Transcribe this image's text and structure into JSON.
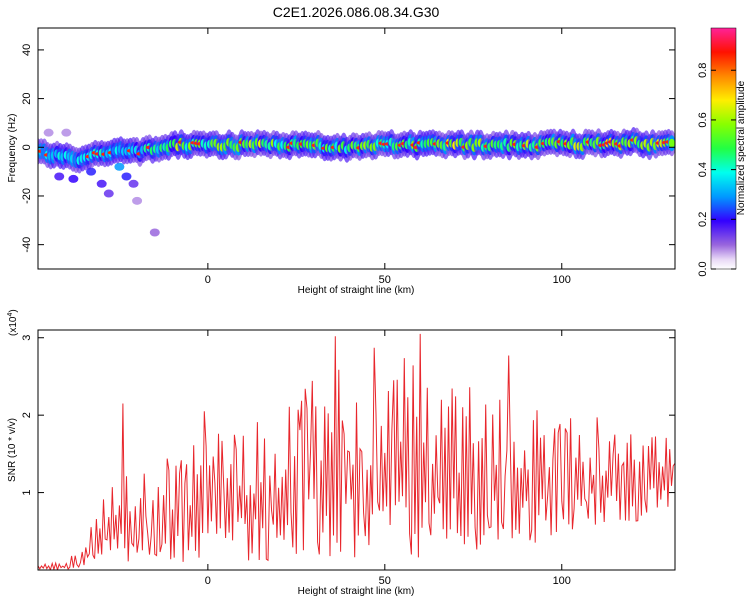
{
  "title": "C2E1.2026.086.08.34.G30",
  "chart_data": [
    {
      "type": "heatmap",
      "xlabel": "Height of straight line (km)",
      "ylabel": "Frequency (Hz)",
      "xlim": [
        -48,
        132
      ],
      "ylim": [
        -50,
        49
      ],
      "xticks": [
        0,
        50,
        100
      ],
      "yticks": [
        -40,
        -20,
        0,
        20,
        40
      ],
      "colorbar": {
        "label": "Normalized spectral amplitude",
        "range": [
          0,
          0.97
        ],
        "ticks": [
          0.0,
          0.2,
          0.4,
          0.6,
          0.8
        ]
      },
      "band": [
        {
          "x": -47,
          "f": -2,
          "a": 0.45
        },
        {
          "x": -44,
          "f": -3,
          "a": 0.5
        },
        {
          "x": -40,
          "f": -4,
          "a": 0.55
        },
        {
          "x": -36,
          "f": -5,
          "a": 0.5
        },
        {
          "x": -32,
          "f": -3,
          "a": 0.55
        },
        {
          "x": -28,
          "f": -2,
          "a": 0.5
        },
        {
          "x": -24,
          "f": -1,
          "a": 0.55
        },
        {
          "x": -20,
          "f": -2,
          "a": 0.5
        },
        {
          "x": -16,
          "f": -1,
          "a": 0.6
        },
        {
          "x": -12,
          "f": 0,
          "a": 0.65
        },
        {
          "x": -8,
          "f": 1,
          "a": 0.8
        },
        {
          "x": -4,
          "f": 1,
          "a": 0.7
        },
        {
          "x": 0,
          "f": 1,
          "a": 0.75
        },
        {
          "x": 5,
          "f": 1,
          "a": 0.8
        },
        {
          "x": 10,
          "f": 1,
          "a": 0.7
        },
        {
          "x": 15,
          "f": 1,
          "a": 0.85
        },
        {
          "x": 20,
          "f": 1,
          "a": 0.7
        },
        {
          "x": 25,
          "f": 1,
          "a": 0.75
        },
        {
          "x": 30,
          "f": 1,
          "a": 0.7
        },
        {
          "x": 35,
          "f": 0,
          "a": 0.65
        },
        {
          "x": 40,
          "f": 0,
          "a": 0.7
        },
        {
          "x": 45,
          "f": 1,
          "a": 0.75
        },
        {
          "x": 50,
          "f": 1,
          "a": 0.7
        },
        {
          "x": 55,
          "f": 1,
          "a": 0.75
        },
        {
          "x": 60,
          "f": 1,
          "a": 0.7
        },
        {
          "x": 65,
          "f": 1,
          "a": 0.8
        },
        {
          "x": 70,
          "f": 1,
          "a": 0.85
        },
        {
          "x": 75,
          "f": 1,
          "a": 0.75
        },
        {
          "x": 80,
          "f": 1,
          "a": 0.8
        },
        {
          "x": 85,
          "f": 1,
          "a": 0.75
        },
        {
          "x": 90,
          "f": 1,
          "a": 0.8
        },
        {
          "x": 95,
          "f": 1,
          "a": 0.85
        },
        {
          "x": 100,
          "f": 2,
          "a": 0.8
        },
        {
          "x": 105,
          "f": 1,
          "a": 0.85
        },
        {
          "x": 110,
          "f": 2,
          "a": 0.8
        },
        {
          "x": 115,
          "f": 1,
          "a": 0.85
        },
        {
          "x": 120,
          "f": 2,
          "a": 0.8
        },
        {
          "x": 125,
          "f": 1,
          "a": 0.85
        },
        {
          "x": 130,
          "f": 2,
          "a": 0.8
        }
      ],
      "blobs": [
        {
          "x": -42,
          "f": -12,
          "a": 0.18
        },
        {
          "x": -38,
          "f": -13,
          "a": 0.2
        },
        {
          "x": -33,
          "f": -10,
          "a": 0.22
        },
        {
          "x": -30,
          "f": -15,
          "a": 0.18
        },
        {
          "x": -28,
          "f": -19,
          "a": 0.15
        },
        {
          "x": -25,
          "f": -8,
          "a": 0.3
        },
        {
          "x": -23,
          "f": -12,
          "a": 0.22
        },
        {
          "x": -21,
          "f": -15,
          "a": 0.15
        },
        {
          "x": -15,
          "f": -35,
          "a": 0.1
        },
        {
          "x": -20,
          "f": -22,
          "a": 0.08
        },
        {
          "x": -45,
          "f": 6,
          "a": 0.08
        },
        {
          "x": -40,
          "f": 6,
          "a": 0.08
        }
      ]
    },
    {
      "type": "line",
      "xlabel": "Height of straight line (km)",
      "ylabel": "SNR (10 * v/v)",
      "yscale_label": "(x10",
      "yscale_exp": "4",
      "scale_suffix": ")",
      "xlim": [
        -48,
        132
      ],
      "ylim": [
        0,
        3.1
      ],
      "xticks": [
        0,
        50,
        100
      ],
      "yticks": [
        1,
        2,
        3
      ],
      "color": "#e8262c",
      "envelope": [
        {
          "x": -48,
          "lo": 0.0,
          "hi": 0.08
        },
        {
          "x": -40,
          "lo": 0.0,
          "hi": 0.1
        },
        {
          "x": -35,
          "lo": 0.05,
          "hi": 0.5
        },
        {
          "x": -30,
          "lo": 0.1,
          "hi": 0.9
        },
        {
          "x": -25,
          "lo": 0.1,
          "hi": 1.3
        },
        {
          "x": -20,
          "lo": 0.05,
          "hi": 1.3
        },
        {
          "x": -10,
          "lo": 0.1,
          "hi": 1.5
        },
        {
          "x": 0,
          "lo": 0.1,
          "hi": 1.8
        },
        {
          "x": 10,
          "lo": 0.1,
          "hi": 1.9
        },
        {
          "x": 20,
          "lo": 0.1,
          "hi": 2.2
        },
        {
          "x": 30,
          "lo": 0.1,
          "hi": 2.5
        },
        {
          "x": 40,
          "lo": 0.1,
          "hi": 2.7
        },
        {
          "x": 50,
          "lo": 0.1,
          "hi": 2.8
        },
        {
          "x": 60,
          "lo": 0.15,
          "hi": 2.7
        },
        {
          "x": 70,
          "lo": 0.2,
          "hi": 2.5
        },
        {
          "x": 80,
          "lo": 0.3,
          "hi": 2.4
        },
        {
          "x": 90,
          "lo": 0.3,
          "hi": 2.2
        },
        {
          "x": 100,
          "lo": 0.4,
          "hi": 2.1
        },
        {
          "x": 110,
          "lo": 0.5,
          "hi": 2.0
        },
        {
          "x": 120,
          "lo": 0.6,
          "hi": 1.8
        },
        {
          "x": 132,
          "lo": 0.8,
          "hi": 1.7
        }
      ],
      "peaks": [
        {
          "x": -24,
          "y": 2.15
        },
        {
          "x": -1,
          "y": 2.05
        },
        {
          "x": 36,
          "y": 3.02
        },
        {
          "x": 47,
          "y": 2.87
        },
        {
          "x": 60,
          "y": 3.05
        },
        {
          "x": 85,
          "y": 2.77
        }
      ]
    }
  ]
}
